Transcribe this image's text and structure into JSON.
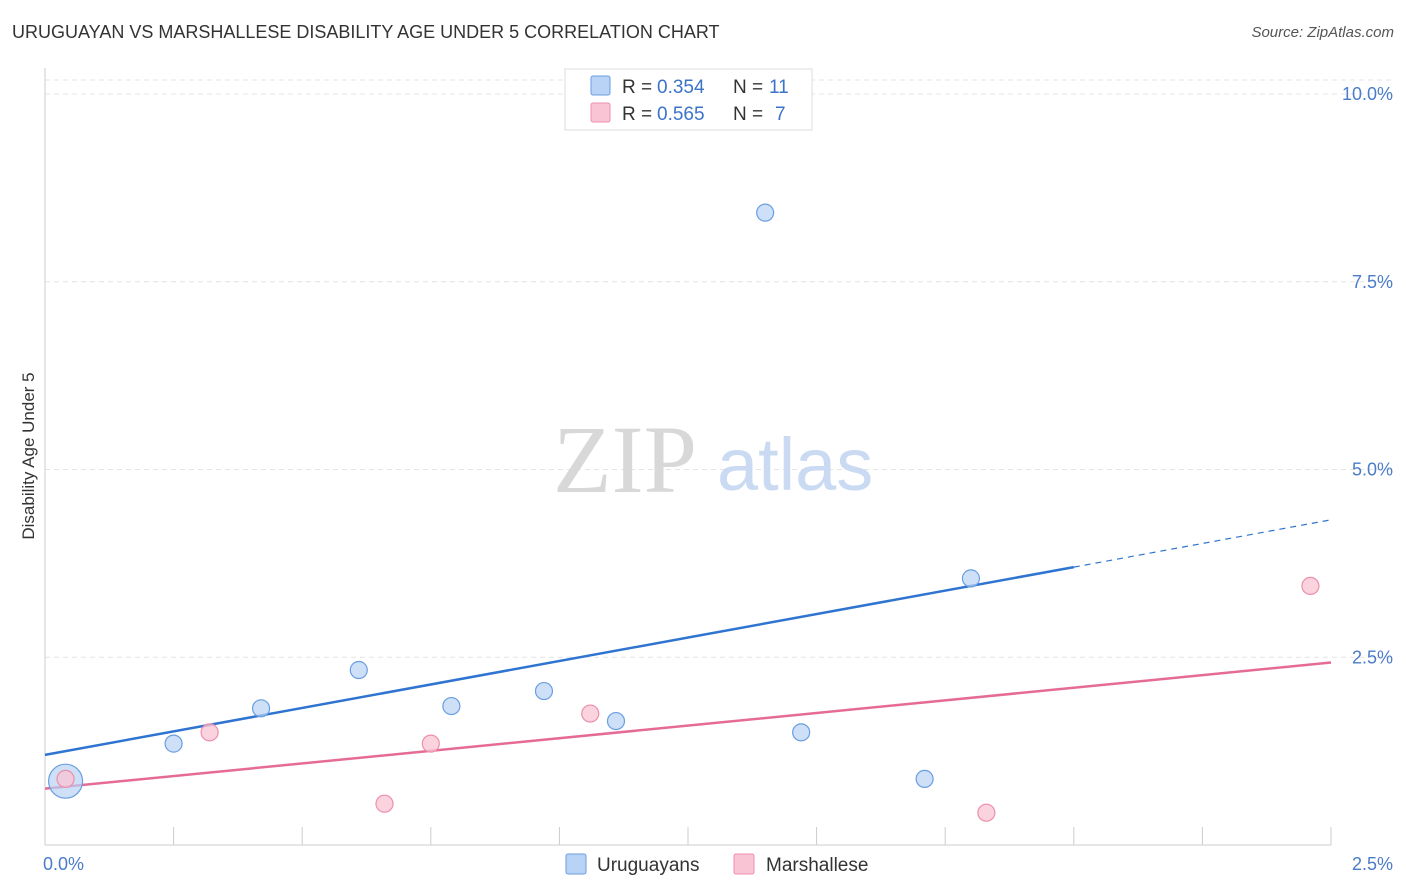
{
  "header": {
    "title": "URUGUAYAN VS MARSHALLESE DISABILITY AGE UNDER 5 CORRELATION CHART",
    "source": "Source: ZipAtlas.com"
  },
  "watermark": {
    "zip": "ZIP",
    "atlas": "atlas"
  },
  "legend": {
    "rows": [
      {
        "r_label": "R =",
        "r_value": "0.354",
        "n_label": "N =",
        "n_value": "11"
      },
      {
        "r_label": "R =",
        "r_value": "0.565",
        "n_label": "N =",
        "n_value": "7"
      }
    ]
  },
  "colors": {
    "uruguayans_fill": "#b8d3f5",
    "uruguayans_stroke": "#6a9ee0",
    "uruguayans_line": "#2f74d0",
    "marshallese_fill": "#f9c4d4",
    "marshallese_stroke": "#ec8fab",
    "marshallese_line": "#e56b96",
    "grid": "#e4e4e4",
    "axis": "#cccccc"
  },
  "chart_data": {
    "type": "scatter",
    "title": "URUGUAYAN VS MARSHALLESE DISABILITY AGE UNDER 5 CORRELATION CHART",
    "xlabel": "",
    "ylabel": "Disability Age Under 5",
    "xlim": [
      0,
      2.5
    ],
    "ylim": [
      0,
      10.0
    ],
    "x_tick_labels": [
      "0.0%",
      "2.5%"
    ],
    "y_ticks": [
      2.5,
      5.0,
      7.5,
      10.0
    ],
    "y_tick_labels": [
      "2.5%",
      "5.0%",
      "7.5%",
      "10.0%"
    ],
    "grid": true,
    "legend_position": "bottom",
    "series": [
      {
        "name": "Uruguayans",
        "r": 0.354,
        "n": 11,
        "points": [
          {
            "x": 0.04,
            "y": 0.85,
            "large": true
          },
          {
            "x": 0.25,
            "y": 1.35
          },
          {
            "x": 0.42,
            "y": 1.82
          },
          {
            "x": 0.61,
            "y": 2.33
          },
          {
            "x": 0.79,
            "y": 1.85
          },
          {
            "x": 0.97,
            "y": 2.05
          },
          {
            "x": 1.11,
            "y": 1.65
          },
          {
            "x": 1.4,
            "y": 8.42
          },
          {
            "x": 1.47,
            "y": 1.5
          },
          {
            "x": 1.71,
            "y": 0.88
          },
          {
            "x": 1.8,
            "y": 3.55
          }
        ],
        "trend": {
          "x0": 0.0,
          "y0": 1.2,
          "x_solid_end": 2.0,
          "y_solid_end": 3.7,
          "x1": 2.5,
          "y1": 4.33
        }
      },
      {
        "name": "Marshallese",
        "r": 0.565,
        "n": 7,
        "points": [
          {
            "x": 0.04,
            "y": 0.88
          },
          {
            "x": 0.32,
            "y": 1.5
          },
          {
            "x": 0.66,
            "y": 0.55
          },
          {
            "x": 0.75,
            "y": 1.35
          },
          {
            "x": 1.06,
            "y": 1.75
          },
          {
            "x": 1.83,
            "y": 0.43
          },
          {
            "x": 2.46,
            "y": 3.45
          }
        ],
        "trend": {
          "x0": 0.0,
          "y0": 0.75,
          "x1": 2.5,
          "y1": 2.43
        }
      }
    ]
  }
}
